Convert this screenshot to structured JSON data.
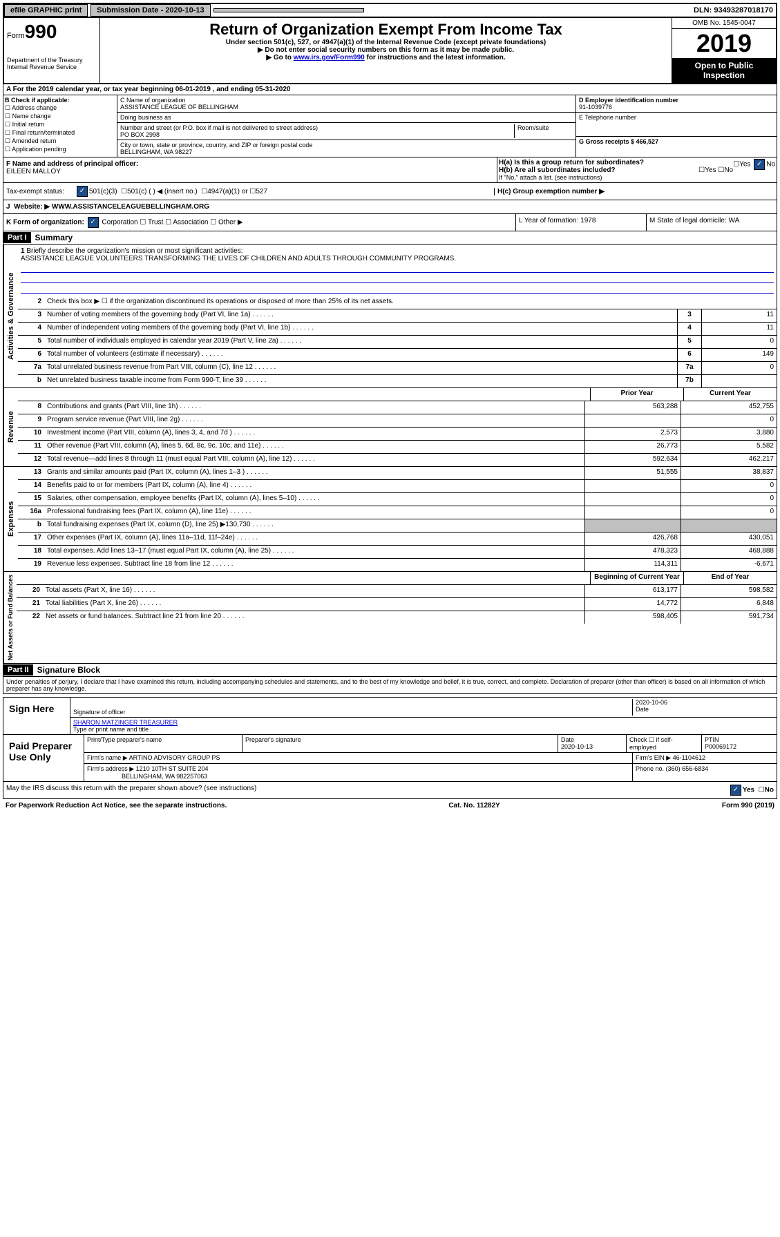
{
  "top": {
    "efile": "efile GRAPHIC print",
    "submission": "Submission Date - 2020-10-13",
    "dln": "DLN: 93493287018170"
  },
  "header": {
    "form": "Form",
    "form_num": "990",
    "dept": "Department of the Treasury\nInternal Revenue Service",
    "title": "Return of Organization Exempt From Income Tax",
    "sub1": "Under section 501(c), 527, or 4947(a)(1) of the Internal Revenue Code (except private foundations)",
    "sub2": "▶ Do not enter social security numbers on this form as it may be made public.",
    "sub3_pre": "▶ Go to ",
    "sub3_link": "www.irs.gov/Form990",
    "sub3_post": " for instructions and the latest information.",
    "omb": "OMB No. 1545-0047",
    "year": "2019",
    "inspect": "Open to Public Inspection"
  },
  "rowA": "For the 2019 calendar year, or tax year beginning 06-01-2019       , and ending 05-31-2020",
  "colB": {
    "label": "B Check if applicable:",
    "items": [
      "☐ Address change",
      "☐ Name change",
      "☐ Initial return",
      "☐ Final return/terminated",
      "☐ Amended return",
      "☐ Application pending"
    ]
  },
  "colC": {
    "name_label": "C Name of organization",
    "name": "ASSISTANCE LEAGUE OF BELLINGHAM",
    "dba_label": "Doing business as",
    "dba": "",
    "addr_label": "Number and street (or P.O. box if mail is not delivered to street address)",
    "room_label": "Room/suite",
    "addr": "PO BOX 2998",
    "city_label": "City or town, state or province, country, and ZIP or foreign postal code",
    "city": "BELLINGHAM, WA  98227"
  },
  "colD": {
    "ein_label": "D Employer identification number",
    "ein": "91-1039776",
    "tel_label": "E Telephone number",
    "tel": "",
    "gross_label": "G Gross receipts $ 466,527"
  },
  "rowF": {
    "label": "F  Name and address of principal officer:",
    "name": "EILEEN MALLOY"
  },
  "rowH": {
    "ha": "H(a)  Is this a group return for subordinates?",
    "hb": "H(b)  Are all subordinates included?",
    "hb_note": "If \"No,\" attach a list. (see instructions)",
    "hc": "H(c)  Group exemption number ▶",
    "yes": "Yes",
    "no": "No"
  },
  "taxI": {
    "label": "Tax-exempt status:",
    "opt1": "501(c)(3)",
    "opt2": "501(c) (   ) ◀ (insert no.)",
    "opt3": "4947(a)(1) or",
    "opt4": "527"
  },
  "rowJ": {
    "label": "Website: ▶",
    "val": "WWW.ASSISTANCELEAGUEBELLINGHAM.ORG"
  },
  "rowK": {
    "label": "K Form of organization:",
    "corp": "Corporation",
    "trust": "Trust",
    "assoc": "Association",
    "other": "Other ▶",
    "l_label": "L Year of formation: 1978",
    "m_label": "M State of legal domicile: WA"
  },
  "part1": {
    "header": "Part I",
    "title": "Summary",
    "line1": "Briefly describe the organization's mission or most significant activities:",
    "mission": "ASSISTANCE LEAGUE VOLUNTEERS TRANSFORMING THE LIVES OF CHILDREN AND ADULTS THROUGH COMMUNITY PROGRAMS.",
    "line2": "Check this box ▶ ☐  if the organization discontinued its operations or disposed of more than 25% of its net assets.",
    "sections": {
      "gov": "Activities & Governance",
      "rev": "Revenue",
      "exp": "Expenses",
      "net": "Net Assets or Fund Balances"
    },
    "lines": [
      {
        "n": "3",
        "t": "Number of voting members of the governing body (Part VI, line 1a)",
        "b": "3",
        "v": "11"
      },
      {
        "n": "4",
        "t": "Number of independent voting members of the governing body (Part VI, line 1b)",
        "b": "4",
        "v": "11"
      },
      {
        "n": "5",
        "t": "Total number of individuals employed in calendar year 2019 (Part V, line 2a)",
        "b": "5",
        "v": "0"
      },
      {
        "n": "6",
        "t": "Total number of volunteers (estimate if necessary)",
        "b": "6",
        "v": "149"
      },
      {
        "n": "7a",
        "t": "Total unrelated business revenue from Part VIII, column (C), line 12",
        "b": "7a",
        "v": "0"
      },
      {
        "n": "b",
        "t": "Net unrelated business taxable income from Form 990-T, line 39",
        "b": "7b",
        "v": ""
      }
    ],
    "cols": {
      "prior": "Prior Year",
      "current": "Current Year",
      "begin": "Beginning of Current Year",
      "end": "End of Year"
    },
    "rev": [
      {
        "n": "8",
        "t": "Contributions and grants (Part VIII, line 1h)",
        "p": "563,288",
        "c": "452,755"
      },
      {
        "n": "9",
        "t": "Program service revenue (Part VIII, line 2g)",
        "p": "",
        "c": "0"
      },
      {
        "n": "10",
        "t": "Investment income (Part VIII, column (A), lines 3, 4, and 7d )",
        "p": "2,573",
        "c": "3,880"
      },
      {
        "n": "11",
        "t": "Other revenue (Part VIII, column (A), lines 5, 6d, 8c, 9c, 10c, and 11e)",
        "p": "26,773",
        "c": "5,582"
      },
      {
        "n": "12",
        "t": "Total revenue—add lines 8 through 11 (must equal Part VIII, column (A), line 12)",
        "p": "592,634",
        "c": "462,217"
      }
    ],
    "exp": [
      {
        "n": "13",
        "t": "Grants and similar amounts paid (Part IX, column (A), lines 1–3 )",
        "p": "51,555",
        "c": "38,837"
      },
      {
        "n": "14",
        "t": "Benefits paid to or for members (Part IX, column (A), line 4)",
        "p": "",
        "c": "0"
      },
      {
        "n": "15",
        "t": "Salaries, other compensation, employee benefits (Part IX, column (A), lines 5–10)",
        "p": "",
        "c": "0"
      },
      {
        "n": "16a",
        "t": "Professional fundraising fees (Part IX, column (A), line 11e)",
        "p": "",
        "c": "0"
      },
      {
        "n": "b",
        "t": "Total fundraising expenses (Part IX, column (D), line 25) ▶130,730",
        "p": "shaded",
        "c": "shaded"
      },
      {
        "n": "17",
        "t": "Other expenses (Part IX, column (A), lines 11a–11d, 11f–24e)",
        "p": "426,768",
        "c": "430,051"
      },
      {
        "n": "18",
        "t": "Total expenses. Add lines 13–17 (must equal Part IX, column (A), line 25)",
        "p": "478,323",
        "c": "468,888"
      },
      {
        "n": "19",
        "t": "Revenue less expenses. Subtract line 18 from line 12",
        "p": "114,311",
        "c": "-6,671"
      }
    ],
    "net": [
      {
        "n": "20",
        "t": "Total assets (Part X, line 16)",
        "p": "613,177",
        "c": "598,582"
      },
      {
        "n": "21",
        "t": "Total liabilities (Part X, line 26)",
        "p": "14,772",
        "c": "6,848"
      },
      {
        "n": "22",
        "t": "Net assets or fund balances. Subtract line 21 from line 20",
        "p": "598,405",
        "c": "591,734"
      }
    ]
  },
  "part2": {
    "header": "Part II",
    "title": "Signature Block",
    "decl": "Under penalties of perjury, I declare that I have examined this return, including accompanying schedules and statements, and to the best of my knowledge and belief, it is true, correct, and complete. Declaration of preparer (other than officer) is based on all information of which preparer has any knowledge."
  },
  "sign": {
    "label": "Sign Here",
    "sig_label": "Signature of officer",
    "date": "2020-10-06",
    "date_label": "Date",
    "name": "SHARON MATZINGER TREASURER",
    "name_label": "Type or print name and title"
  },
  "paid": {
    "label": "Paid Preparer Use Only",
    "h1": "Print/Type preparer's name",
    "h2": "Preparer's signature",
    "h3": "Date",
    "h4": "Check ☐ if self-employed",
    "h5": "PTIN",
    "date": "2020-10-13",
    "ptin": "P00069172",
    "firm_label": "Firm's name      ▶",
    "firm": "ARTINO ADVISORY GROUP PS",
    "ein_label": "Firm's EIN ▶",
    "ein": "46-1104612",
    "addr_label": "Firm's address ▶",
    "addr1": "1210 10TH ST SUITE 204",
    "addr2": "BELLINGHAM, WA  982257063",
    "phone_label": "Phone no.",
    "phone": "(360) 656-6834"
  },
  "discuss": {
    "text": "May the IRS discuss this return with the preparer shown above? (see instructions)",
    "yes": "Yes",
    "no": "No"
  },
  "bottom": {
    "left": "For Paperwork Reduction Act Notice, see the separate instructions.",
    "mid": "Cat. No. 11282Y",
    "right": "Form 990 (2019)"
  }
}
